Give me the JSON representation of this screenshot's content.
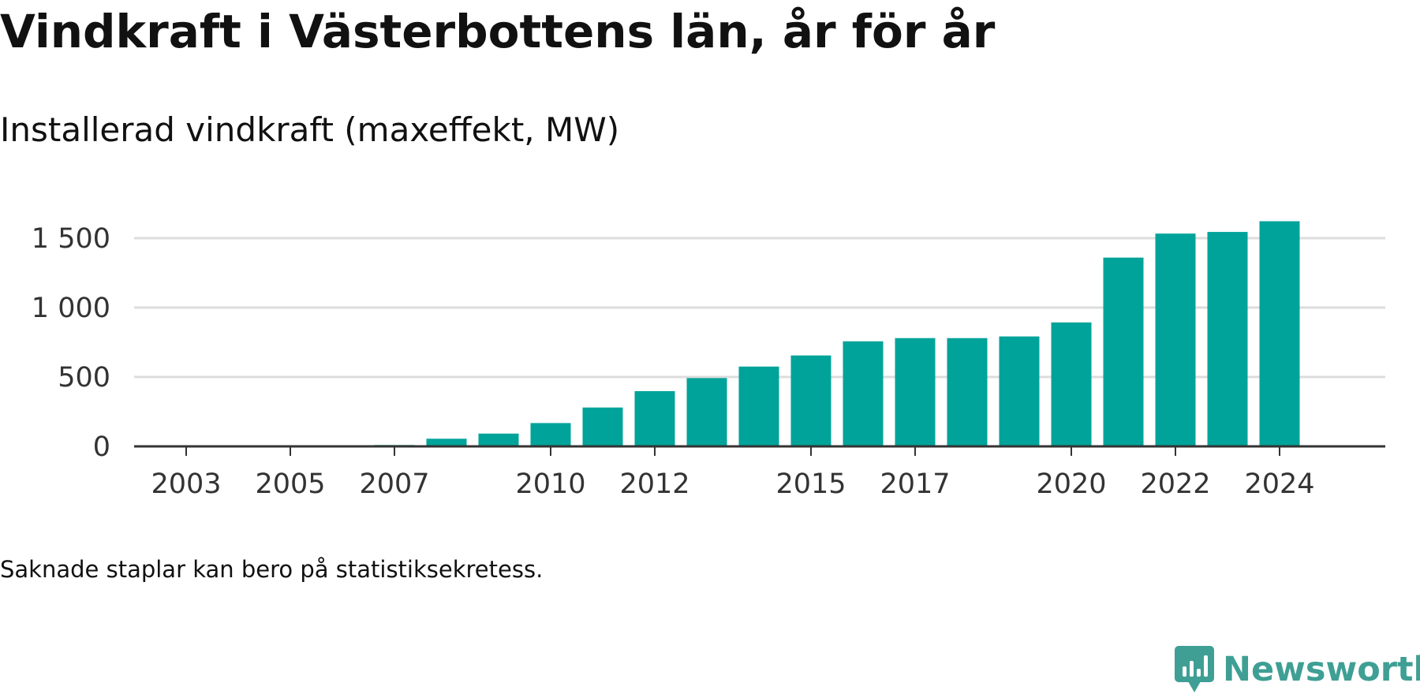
{
  "title": "Vindkraft i Västerbottens län, år för år",
  "subtitle": "Installerad vindkraft (maxeffekt, MW)",
  "footnote": "Saknade staplar kan bero på statistiksekretess.",
  "brand": {
    "name": "Newsworthy",
    "icon": "newsworthy-logo-icon",
    "color": "#3f9f94"
  },
  "chart_data": {
    "type": "bar",
    "title": "Vindkraft i Västerbottens län, år för år",
    "subtitle": "Installerad vindkraft (maxeffekt, MW)",
    "xlabel": "",
    "ylabel": "",
    "categories": [
      "2003",
      "2004",
      "2005",
      "2006",
      "2007",
      "2008",
      "2009",
      "2010",
      "2011",
      "2012",
      "2013",
      "2014",
      "2015",
      "2016",
      "2017",
      "2018",
      "2019",
      "2020",
      "2021",
      "2022",
      "2023",
      "2024"
    ],
    "x_tick_labels": [
      "2003",
      "2005",
      "2007",
      "2010",
      "2012",
      "2015",
      "2017",
      "2020",
      "2022",
      "2024"
    ],
    "series": [
      {
        "values": [
          1,
          1,
          2,
          2,
          10,
          55,
          92,
          168,
          280,
          398,
          492,
          575,
          655,
          757,
          780,
          780,
          792,
          893,
          1360,
          1533,
          1545,
          1622
        ]
      }
    ],
    "ylim": [
      0,
      1700
    ],
    "y_ticks": [
      0,
      500,
      1000,
      1500
    ],
    "y_tick_labels": [
      "0",
      "500",
      "1 000",
      "1 500"
    ],
    "grid": true,
    "legend": "none",
    "colors": {
      "bar": "#00a39a",
      "grid": "#dddddd",
      "axis": "#333333",
      "tick_text": "#333333"
    }
  }
}
